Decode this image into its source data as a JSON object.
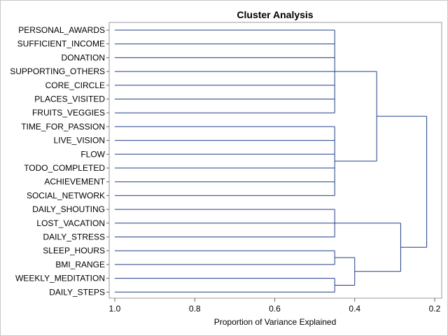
{
  "chart_data": {
    "type": "dendrogram",
    "title": "Cluster Analysis",
    "xlabel": "Proportion of Variance Explained",
    "ylabel": "",
    "x_range": [
      1.0,
      0.2
    ],
    "x_reversed": true,
    "x_ticks": [
      1.0,
      0.8,
      0.6,
      0.4,
      0.2
    ],
    "x_tick_labels": [
      "1.0",
      "0.8",
      "0.6",
      "0.4",
      "0.2"
    ],
    "grid": false,
    "line_color": "#1f3f86",
    "leaves": [
      "PERSONAL_AWARDS",
      "SUFFICIENT_INCOME",
      "DONATION",
      "SUPPORTING_OTHERS",
      "CORE_CIRCLE",
      "PLACES_VISITED",
      "FRUITS_VEGGIES",
      "TIME_FOR_PASSION",
      "LIVE_VISION",
      "FLOW",
      "TODO_COMPLETED",
      "ACHIEVEMENT",
      "SOCIAL_NETWORK",
      "DAILY_SHOUTING",
      "LOST_VACATION",
      "DAILY_STRESS",
      "SLEEP_HOURS",
      "BMI_RANGE",
      "WEEKLY_MEDITATION",
      "DAILY_STEPS"
    ],
    "merges": [
      {
        "members": [
          0,
          1,
          2,
          3,
          4,
          5,
          6
        ],
        "height": 0.45
      },
      {
        "members": [
          7,
          8,
          9,
          10,
          11,
          12
        ],
        "height": 0.45
      },
      {
        "members": [
          13,
          14,
          15
        ],
        "height": 0.45
      },
      {
        "members": [
          16,
          17
        ],
        "height": 0.45
      },
      {
        "members": [
          18,
          19
        ],
        "height": 0.45
      },
      {
        "children": [
          "n3",
          "n4"
        ],
        "height": 0.4
      },
      {
        "children": [
          "n0",
          "n1"
        ],
        "height": 0.345
      },
      {
        "children": [
          "n2",
          "n5"
        ],
        "height": 0.285
      },
      {
        "children": [
          "n6",
          "n7"
        ],
        "height": 0.22
      }
    ]
  }
}
